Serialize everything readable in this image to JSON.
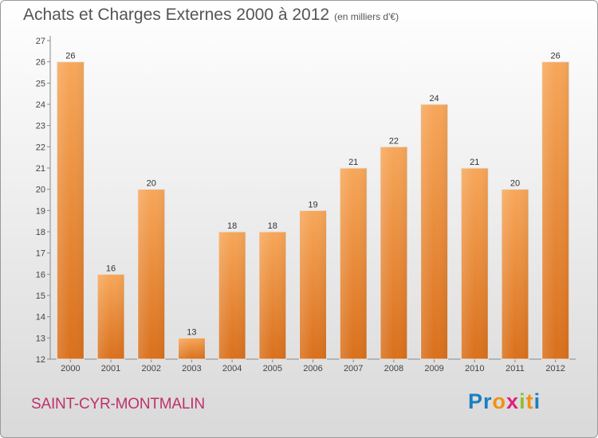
{
  "header": {
    "title": "Achats et Charges Externes 2000 à 2012",
    "unit": "(en milliers d'€)"
  },
  "footer": {
    "city": "SAINT-CYR-MONTMALIN",
    "logo_letters": [
      {
        "char": "P",
        "color": "#1a7fc1"
      },
      {
        "char": "r",
        "color": "#1a7fc1"
      },
      {
        "char": "o",
        "color": "#f29111"
      },
      {
        "char": "x",
        "color": "#e2207a"
      },
      {
        "char": "i",
        "color": "#8dbf2a"
      },
      {
        "char": "t",
        "color": "#f29111"
      },
      {
        "char": "i",
        "color": "#1a7fc1"
      }
    ]
  },
  "chart_data": {
    "type": "bar",
    "title": "Achats et Charges Externes 2000 à 2012",
    "subtitle": "(en milliers d'€)",
    "categories": [
      "2000",
      "2001",
      "2002",
      "2003",
      "2004",
      "2005",
      "2006",
      "2007",
      "2008",
      "2009",
      "2010",
      "2011",
      "2012"
    ],
    "values": [
      26,
      16,
      20,
      13,
      18,
      18,
      19,
      21,
      22,
      24,
      21,
      20,
      26
    ],
    "ylim": [
      12,
      27
    ],
    "yticks": [
      12,
      13,
      14,
      15,
      16,
      17,
      18,
      19,
      20,
      21,
      22,
      23,
      24,
      25,
      26,
      27
    ],
    "grid": false,
    "bar_color": "#f08a2e"
  }
}
